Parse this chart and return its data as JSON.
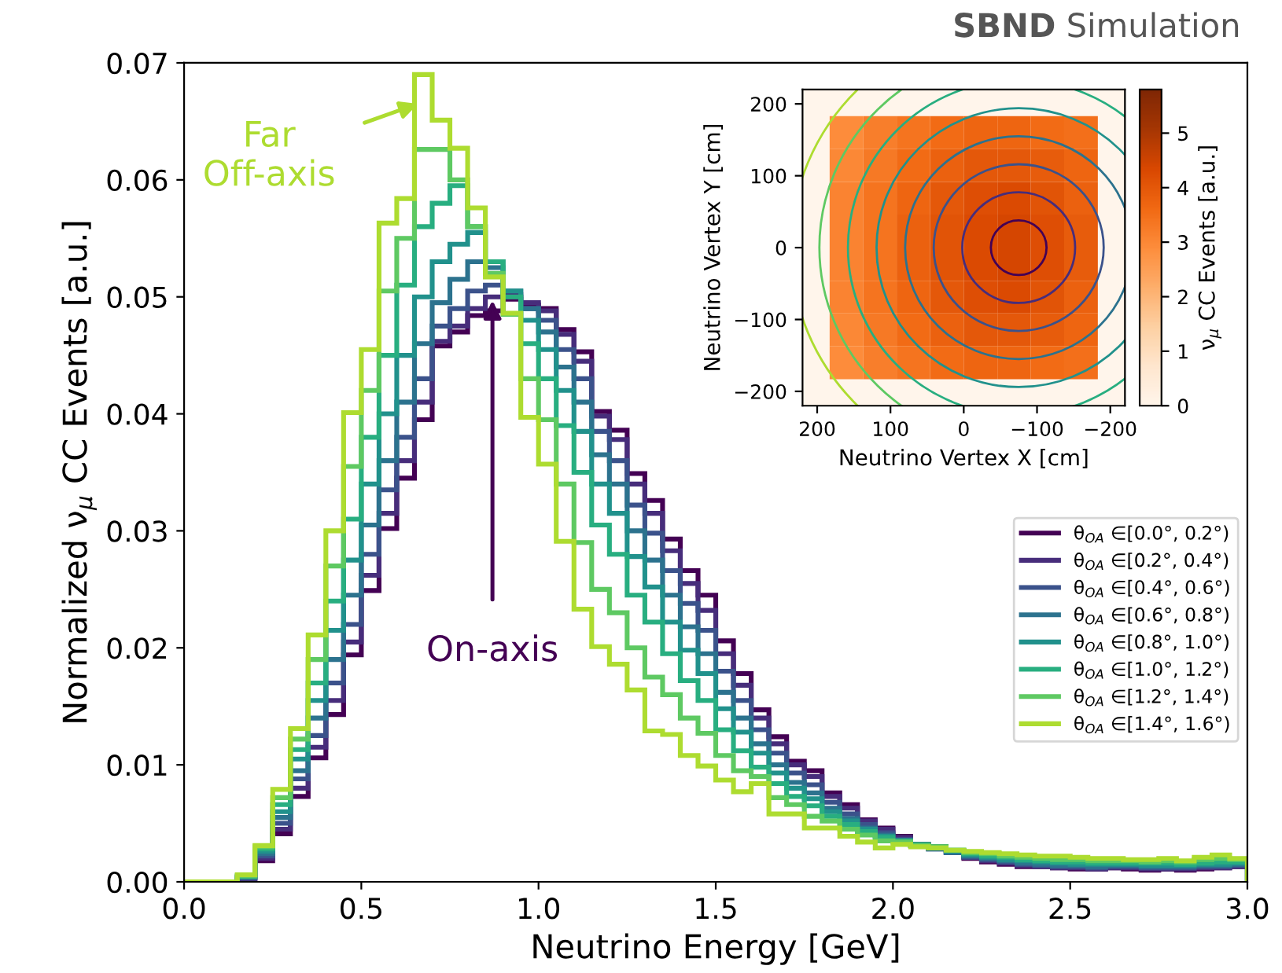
{
  "chart_data": [
    {
      "type": "histogram",
      "title": "SBND Simulation",
      "xlabel": "Neutrino Energy [GeV]",
      "ylabel": "Normalized ν$_{μ}$ CC Events [a.u.]",
      "bins": [
        0.0,
        0.05,
        0.1,
        0.15,
        0.2,
        0.25,
        0.3,
        0.35,
        0.4,
        0.45,
        0.5,
        0.55,
        0.6,
        0.65,
        0.7,
        0.75,
        0.8,
        0.85,
        0.9,
        0.95,
        1.0,
        1.05,
        1.1,
        1.15,
        1.2,
        1.25,
        1.3,
        1.35,
        1.4,
        1.45,
        1.5,
        1.55,
        1.6,
        1.65,
        1.7,
        1.75,
        1.8,
        1.85,
        1.9,
        1.95,
        2.0,
        2.05,
        2.1,
        2.15,
        2.2,
        2.25,
        2.3,
        2.35,
        2.4,
        2.45,
        2.5,
        2.55,
        2.6,
        2.65,
        2.7,
        2.75,
        2.8,
        2.85,
        2.9,
        2.95,
        3.0
      ],
      "series": [
        {
          "name": "θ$_{OA}$ ∈[0.0°, 0.2°)",
          "color": "#440154",
          "values": [
            0,
            0,
            0,
            0.0002,
            0.0018,
            0.0041,
            0.0073,
            0.0106,
            0.0143,
            0.0194,
            0.0249,
            0.0302,
            0.0345,
            0.0395,
            0.0458,
            0.047,
            0.0484,
            0.0488,
            0.0498,
            0.0493,
            0.049,
            0.0472,
            0.0453,
            0.0402,
            0.0386,
            0.0349,
            0.0326,
            0.0293,
            0.0266,
            0.0245,
            0.0206,
            0.0178,
            0.0147,
            0.0124,
            0.0103,
            0.0095,
            0.0076,
            0.0066,
            0.0053,
            0.0046,
            0.0039,
            0.0032,
            0.003,
            0.0025,
            0.002,
            0.0017,
            0.0015,
            0.0013,
            0.0013,
            0.0012,
            0.0011,
            0.0011,
            0.0012,
            0.0011,
            0.001,
            0.0011,
            0.001,
            0.0011,
            0.0012,
            0.0013
          ]
        },
        {
          "name": "θ$_{OA}$ ∈[0.2°, 0.4°)",
          "color": "#472d7b",
          "values": [
            0,
            0,
            0,
            0.0003,
            0.002,
            0.0045,
            0.008,
            0.0115,
            0.0155,
            0.0205,
            0.0262,
            0.0315,
            0.036,
            0.041,
            0.0462,
            0.0475,
            0.049,
            0.05,
            0.0502,
            0.0495,
            0.0488,
            0.0468,
            0.0445,
            0.0398,
            0.0378,
            0.034,
            0.0315,
            0.0283,
            0.0255,
            0.0232,
            0.0195,
            0.0168,
            0.014,
            0.0118,
            0.01,
            0.009,
            0.0073,
            0.0063,
            0.0052,
            0.0045,
            0.0038,
            0.0032,
            0.0029,
            0.0025,
            0.0021,
            0.0018,
            0.0016,
            0.0014,
            0.0013,
            0.0012,
            0.0012,
            0.0011,
            0.0012,
            0.0012,
            0.0011,
            0.0011,
            0.0011,
            0.0012,
            0.0012,
            0.0013
          ]
        },
        {
          "name": "θ$_{OA}$ ∈[0.4°, 0.6°)",
          "color": "#3b528b",
          "values": [
            0,
            0,
            0,
            0.0003,
            0.0022,
            0.005,
            0.0088,
            0.0125,
            0.017,
            0.022,
            0.028,
            0.0335,
            0.038,
            0.043,
            0.0475,
            0.049,
            0.0505,
            0.051,
            0.05,
            0.049,
            0.048,
            0.0455,
            0.043,
            0.0385,
            0.036,
            0.0322,
            0.0298,
            0.0266,
            0.0238,
            0.0215,
            0.018,
            0.0155,
            0.013,
            0.011,
            0.0093,
            0.0083,
            0.0068,
            0.0058,
            0.0049,
            0.0042,
            0.0036,
            0.0031,
            0.0028,
            0.0025,
            0.0021,
            0.0019,
            0.0017,
            0.0015,
            0.0014,
            0.0013,
            0.0013,
            0.0012,
            0.0013,
            0.0013,
            0.0012,
            0.0012,
            0.0012,
            0.0013,
            0.0013,
            0.0014
          ]
        },
        {
          "name": "θ$_{OA}$ ∈[0.6°, 0.8°)",
          "color": "#2c728e",
          "values": [
            0,
            0,
            0,
            0.0004,
            0.0024,
            0.0055,
            0.0095,
            0.014,
            0.019,
            0.0245,
            0.0305,
            0.036,
            0.041,
            0.046,
            0.0495,
            0.0515,
            0.053,
            0.0525,
            0.0505,
            0.049,
            0.047,
            0.044,
            0.041,
            0.0365,
            0.034,
            0.03,
            0.0275,
            0.0245,
            0.0218,
            0.0195,
            0.0162,
            0.014,
            0.0118,
            0.01,
            0.0085,
            0.0076,
            0.0063,
            0.0054,
            0.0046,
            0.004,
            0.0035,
            0.0031,
            0.0028,
            0.0025,
            0.0022,
            0.002,
            0.0018,
            0.0016,
            0.0015,
            0.0014,
            0.0014,
            0.0013,
            0.0014,
            0.0014,
            0.0013,
            0.0013,
            0.0013,
            0.0014,
            0.0014,
            0.0015
          ]
        },
        {
          "name": "θ$_{OA}$ ∈[0.8°, 1.0°)",
          "color": "#21918c",
          "values": [
            0,
            0,
            0,
            0.0004,
            0.0026,
            0.006,
            0.0105,
            0.0155,
            0.0215,
            0.0275,
            0.034,
            0.04,
            0.045,
            0.05,
            0.053,
            0.0545,
            0.0555,
            0.053,
            0.0505,
            0.048,
            0.0455,
            0.042,
            0.0385,
            0.034,
            0.0315,
            0.0278,
            0.0252,
            0.0222,
            0.0198,
            0.0178,
            0.0148,
            0.0128,
            0.011,
            0.0093,
            0.008,
            0.0071,
            0.006,
            0.0052,
            0.0045,
            0.0039,
            0.0035,
            0.0031,
            0.0029,
            0.0026,
            0.0023,
            0.0021,
            0.0019,
            0.0018,
            0.0017,
            0.0016,
            0.0015,
            0.0015,
            0.0015,
            0.0015,
            0.0014,
            0.0014,
            0.0014,
            0.0015,
            0.0015,
            0.0016
          ]
        },
        {
          "name": "θ$_{OA}$ ∈[1.0°, 1.2°)",
          "color": "#28ae80",
          "values": [
            0,
            0,
            0,
            0.0005,
            0.0028,
            0.0066,
            0.0113,
            0.017,
            0.024,
            0.031,
            0.038,
            0.045,
            0.051,
            0.056,
            0.058,
            0.0595,
            0.056,
            0.053,
            0.05,
            0.046,
            0.043,
            0.039,
            0.035,
            0.0305,
            0.028,
            0.0245,
            0.0222,
            0.0195,
            0.0172,
            0.0155,
            0.013,
            0.0112,
            0.0098,
            0.0084,
            0.0073,
            0.0065,
            0.0056,
            0.0049,
            0.0043,
            0.0038,
            0.0035,
            0.0032,
            0.003,
            0.0027,
            0.0024,
            0.0022,
            0.0021,
            0.0019,
            0.0018,
            0.0017,
            0.0017,
            0.0016,
            0.0016,
            0.0016,
            0.0016,
            0.0016,
            0.0015,
            0.0016,
            0.0017,
            0.0017
          ]
        },
        {
          "name": "θ$_{OA}$ ∈[1.2°, 1.4°)",
          "color": "#5ec962",
          "values": [
            0,
            0,
            0,
            0.0005,
            0.003,
            0.0072,
            0.0122,
            0.019,
            0.027,
            0.0355,
            0.042,
            0.0505,
            0.055,
            0.0626,
            0.0626,
            0.06,
            0.056,
            0.052,
            0.0485,
            0.043,
            0.0395,
            0.034,
            0.029,
            0.025,
            0.023,
            0.02,
            0.0175,
            0.016,
            0.014,
            0.0127,
            0.0108,
            0.0095,
            0.009,
            0.0072,
            0.0066,
            0.0056,
            0.0052,
            0.0045,
            0.004,
            0.0035,
            0.0034,
            0.0031,
            0.003,
            0.0027,
            0.0025,
            0.0024,
            0.0022,
            0.0021,
            0.002,
            0.0019,
            0.0019,
            0.0018,
            0.0018,
            0.0018,
            0.0017,
            0.0018,
            0.0017,
            0.0019,
            0.002,
            0.0019
          ]
        },
        {
          "name": "θ$_{OA}$ ∈[1.4°, 1.6°)",
          "color": "#addc30",
          "values": [
            0,
            0,
            0,
            0.0006,
            0.0031,
            0.0079,
            0.0131,
            0.0211,
            0.03,
            0.0401,
            0.0455,
            0.0563,
            0.0584,
            0.069,
            0.0651,
            0.0627,
            0.0576,
            0.0517,
            0.0486,
            0.0397,
            0.0357,
            0.0291,
            0.0233,
            0.0201,
            0.0186,
            0.0164,
            0.0129,
            0.0126,
            0.0108,
            0.0099,
            0.0087,
            0.0077,
            0.0084,
            0.0058,
            0.0058,
            0.0046,
            0.0046,
            0.0039,
            0.0034,
            0.0029,
            0.0032,
            0.003,
            0.0029,
            0.0027,
            0.0026,
            0.0025,
            0.0024,
            0.0023,
            0.0022,
            0.0022,
            0.0021,
            0.002,
            0.002,
            0.0019,
            0.0019,
            0.002,
            0.0018,
            0.0021,
            0.0023,
            0.002
          ]
        }
      ],
      "annotations": [
        {
          "text": "Far\nOff-axis",
          "x": 0.66,
          "y": 0.0665
        },
        {
          "text": "On-axis",
          "x": 0.87,
          "y": 0.0497
        }
      ],
      "xlim": [
        0.0,
        3.0
      ],
      "xticks": [
        {
          "value": 0,
          "label": "0.0"
        },
        0.5,
        {
          "value": 1,
          "label": "1.0"
        },
        1.5,
        {
          "value": 2,
          "label": "2.0"
        },
        2.5,
        {
          "value": 3,
          "label": "3.0"
        }
      ],
      "ylim": [
        0,
        0.07
      ],
      "yticks": [
        {
          "value": 0,
          "label": "0.00"
        },
        {
          "value": 0.01,
          "label": "0.01"
        },
        {
          "value": 0.02,
          "label": "0.02"
        },
        {
          "value": 0.03,
          "label": "0.03"
        },
        {
          "value": 0.04,
          "label": "0.04"
        },
        {
          "value": 0.05,
          "label": "0.05"
        },
        {
          "value": 0.06,
          "label": "0.06"
        },
        {
          "value": 0.07,
          "label": "0.07"
        }
      ],
      "legend": "right",
      "grid": false
    },
    {
      "type": "heatmap",
      "xlabel": "Neutrino Vertex X [cm]",
      "ylabel": "Neutrino Vertex Y [cm]",
      "clabel": "ν$_{μ}$ CC Events [a.u.]",
      "x": [
        160,
        114,
        69,
        23,
        -23,
        -69,
        -114,
        -160
      ],
      "y": [
        160,
        114,
        69,
        23,
        -23,
        -69,
        -114,
        -160
      ],
      "cells": [
        [
          2.9,
          3.2,
          3.4,
          3.6,
          3.7,
          3.7,
          3.6,
          3.5
        ],
        [
          3.0,
          3.3,
          3.6,
          3.8,
          4.0,
          4.0,
          3.9,
          3.7
        ],
        [
          3.1,
          3.4,
          3.7,
          4.0,
          4.2,
          4.3,
          4.1,
          3.8
        ],
        [
          3.1,
          3.4,
          3.8,
          4.1,
          4.3,
          4.4,
          4.2,
          3.9
        ],
        [
          3.1,
          3.4,
          3.8,
          4.1,
          4.3,
          4.4,
          4.2,
          3.9
        ],
        [
          3.1,
          3.4,
          3.7,
          4.0,
          4.2,
          4.3,
          4.1,
          3.8
        ],
        [
          3.0,
          3.3,
          3.6,
          3.8,
          4.0,
          4.0,
          3.9,
          3.7
        ],
        [
          2.9,
          3.2,
          3.4,
          3.6,
          3.7,
          3.7,
          3.6,
          3.5
        ]
      ],
      "xlim": [
        220,
        -220
      ],
      "xticks": [
        200,
        100,
        0,
        {
          "value": -100,
          "label": "−100"
        },
        {
          "value": -200,
          "label": "−200"
        }
      ],
      "ylim": [
        -220,
        220
      ],
      "yticks": [
        {
          "value": -200,
          "label": "−200"
        },
        {
          "value": -100,
          "label": "−100"
        },
        0,
        100,
        200
      ],
      "clim": [
        0,
        5.8
      ],
      "cticks": [
        0,
        1,
        2,
        3,
        4,
        5
      ]
    }
  ]
}
